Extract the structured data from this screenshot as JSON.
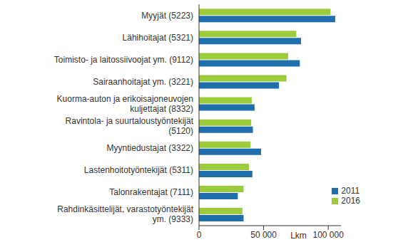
{
  "chart_data": {
    "type": "bar",
    "orientation": "horizontal",
    "x_label": "Lkm",
    "categories": [
      "Myyjät (5223)",
      "Lähihoitajat (5321)",
      "Toimisto- ja laitossiivoojat ym. (9112)",
      "Sairaanhoitajat ym. (3221)",
      "Kuorma-auton ja erikoisajoneuvojen kuljettajat (8332)",
      "Ravintola- ja suurtaloustyöntekijät (5120)",
      "Myyntiedustajat (3322)",
      "Lastenhoitotyöntekijät (5311)",
      "Talonrakentajat (7111)",
      "Rahdinkäsittelijät, varastotyöntekijät ym. (9333)"
    ],
    "series": [
      {
        "name": "2016",
        "color": "#9ccc3c",
        "values": [
          101800,
          75300,
          69000,
          67700,
          40800,
          40400,
          39900,
          38600,
          34500,
          33600
        ]
      },
      {
        "name": "2011",
        "color": "#1f6fad",
        "values": [
          105400,
          78900,
          78000,
          61900,
          43000,
          41700,
          48000,
          41300,
          30000,
          34500
        ]
      }
    ],
    "xlim": [
      0,
      110000
    ],
    "xticks": [
      0,
      {
        "value": 50000,
        "label": "50 000"
      },
      {
        "value": 100000,
        "label": "100 000"
      }
    ],
    "grid": false,
    "legend": "lower right"
  }
}
